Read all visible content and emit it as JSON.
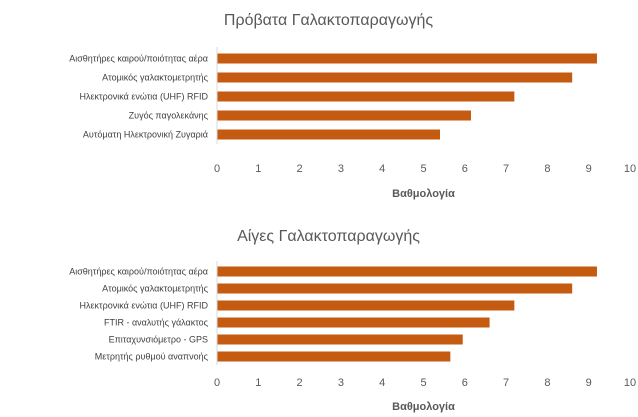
{
  "chart_data": [
    {
      "type": "bar",
      "orientation": "horizontal",
      "title": "Πρόβατα Γαλακτοπαραγωγής",
      "xlabel": "Βαθμολογία",
      "ylabel": "",
      "xlim": [
        0,
        10
      ],
      "ticks": [
        0,
        1,
        2,
        3,
        4,
        5,
        6,
        7,
        8,
        9,
        10
      ],
      "grid": false,
      "categories": [
        "Αισθητήρες καιρού/ποιότητας αέρα",
        "Ατομικός γαλακτομετρητής",
        "Ηλεκτρονικά ενώτια (UHF) RFID",
        "Ζυγός παγολεκάνης",
        "Αυτόματη Ηλεκτρονική Ζυγαριά"
      ],
      "values": [
        9.2,
        8.6,
        7.2,
        6.15,
        5.4
      ],
      "color": "#C55A11"
    },
    {
      "type": "bar",
      "orientation": "horizontal",
      "title": "Αίγες Γαλακτοπαραγωγής",
      "xlabel": "Βαθμολογία",
      "ylabel": "",
      "xlim": [
        0,
        10
      ],
      "ticks": [
        0,
        1,
        2,
        3,
        4,
        5,
        6,
        7,
        8,
        9,
        10
      ],
      "grid": false,
      "categories": [
        "Αισθητήρες καιρού/ποιότητας αέρα",
        "Ατομικός γαλακτομετρητής",
        "Ηλεκτρονικά ενώτια (UHF) RFID",
        "FTIR - αναλυτής γάλακτος",
        "Επιταχυνσιόμετρο - GPS",
        "Μετρητής ρυθμού αναπνοής"
      ],
      "values": [
        9.2,
        8.6,
        7.2,
        6.6,
        5.95,
        5.65
      ],
      "color": "#C55A11"
    }
  ]
}
